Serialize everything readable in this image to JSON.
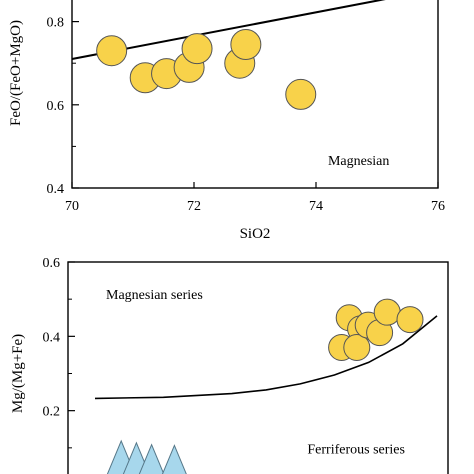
{
  "chart_data": [
    {
      "type": "scatter",
      "title": "",
      "xlabel": "SiO2",
      "ylabel": "FeO/(FeO+MgO)",
      "xlim": [
        70,
        76
      ],
      "ylim": [
        0.4,
        0.9
      ],
      "xticks": [
        "70",
        "72",
        "74",
        "76"
      ],
      "yticks": [
        "0.4",
        "0.6",
        "0.8"
      ],
      "grid": false,
      "annotations": [
        {
          "text": "Magnesian",
          "x": 74.7,
          "y": 0.455
        }
      ],
      "boundary_line": {
        "x": [
          70,
          75.7
        ],
        "y": [
          0.71,
          0.87
        ]
      },
      "series": [
        {
          "marker": "circle",
          "color": "#f8d24a",
          "x": [
            70.65,
            71.2,
            71.55,
            71.92,
            72.05,
            72.75,
            72.85,
            73.75
          ],
          "y": [
            0.73,
            0.665,
            0.675,
            0.69,
            0.735,
            0.7,
            0.745,
            0.625
          ]
        }
      ]
    },
    {
      "type": "scatter",
      "title": "",
      "xlabel": "",
      "ylabel": "Mg/(Mg+Fe)",
      "ylim": [
        0,
        0.6
      ],
      "yticks": [
        "0.2",
        "0.4",
        "0.6"
      ],
      "grid": false,
      "annotations": [
        {
          "text": "Magnesian series",
          "x": 0.1,
          "y": 0.5
        },
        {
          "text": "Ferriferous series",
          "x": 0.63,
          "y": 0.085
        }
      ],
      "boundary_curve": {
        "x": [
          0.0,
          0.2,
          0.4,
          0.5,
          0.6,
          0.7,
          0.8,
          0.9,
          1.0
        ],
        "y": [
          0.233,
          0.236,
          0.246,
          0.256,
          0.272,
          0.296,
          0.33,
          0.38,
          0.455
        ]
      },
      "series": [
        {
          "marker": "circle",
          "color": "#f8d24a",
          "x": [
            0.72,
            0.74,
            0.77,
            0.76,
            0.79,
            0.82,
            0.84,
            0.9
          ],
          "y": [
            0.37,
            0.45,
            0.42,
            0.37,
            0.43,
            0.41,
            0.465,
            0.445
          ]
        },
        {
          "marker": "triangle",
          "color": "#a7d7ec",
          "x": [
            0.14,
            0.18,
            0.22,
            0.28
          ],
          "y": [
            0.07,
            0.065,
            0.06,
            0.058
          ]
        }
      ]
    }
  ]
}
